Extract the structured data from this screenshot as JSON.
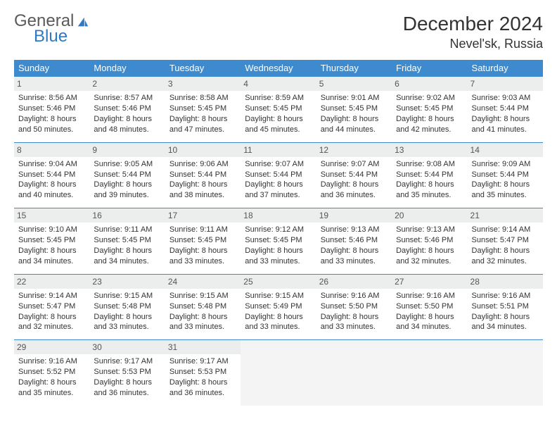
{
  "logo": {
    "general": "General",
    "blue": "Blue"
  },
  "title": "December 2024",
  "location": "Nevel'sk, Russia",
  "colors": {
    "header_bg": "#3d8bce",
    "header_fg": "#ffffff",
    "daynum_bg": "#eceded",
    "border": "#3d8bce",
    "logo_gray": "#5a5a5a",
    "logo_blue": "#2f79c2"
  },
  "weekdays": [
    "Sunday",
    "Monday",
    "Tuesday",
    "Wednesday",
    "Thursday",
    "Friday",
    "Saturday"
  ],
  "weeks": [
    [
      {
        "n": "1",
        "sr": "Sunrise: 8:56 AM",
        "ss": "Sunset: 5:46 PM",
        "d1": "Daylight: 8 hours",
        "d2": "and 50 minutes."
      },
      {
        "n": "2",
        "sr": "Sunrise: 8:57 AM",
        "ss": "Sunset: 5:46 PM",
        "d1": "Daylight: 8 hours",
        "d2": "and 48 minutes."
      },
      {
        "n": "3",
        "sr": "Sunrise: 8:58 AM",
        "ss": "Sunset: 5:45 PM",
        "d1": "Daylight: 8 hours",
        "d2": "and 47 minutes."
      },
      {
        "n": "4",
        "sr": "Sunrise: 8:59 AM",
        "ss": "Sunset: 5:45 PM",
        "d1": "Daylight: 8 hours",
        "d2": "and 45 minutes."
      },
      {
        "n": "5",
        "sr": "Sunrise: 9:01 AM",
        "ss": "Sunset: 5:45 PM",
        "d1": "Daylight: 8 hours",
        "d2": "and 44 minutes."
      },
      {
        "n": "6",
        "sr": "Sunrise: 9:02 AM",
        "ss": "Sunset: 5:45 PM",
        "d1": "Daylight: 8 hours",
        "d2": "and 42 minutes."
      },
      {
        "n": "7",
        "sr": "Sunrise: 9:03 AM",
        "ss": "Sunset: 5:44 PM",
        "d1": "Daylight: 8 hours",
        "d2": "and 41 minutes."
      }
    ],
    [
      {
        "n": "8",
        "sr": "Sunrise: 9:04 AM",
        "ss": "Sunset: 5:44 PM",
        "d1": "Daylight: 8 hours",
        "d2": "and 40 minutes."
      },
      {
        "n": "9",
        "sr": "Sunrise: 9:05 AM",
        "ss": "Sunset: 5:44 PM",
        "d1": "Daylight: 8 hours",
        "d2": "and 39 minutes."
      },
      {
        "n": "10",
        "sr": "Sunrise: 9:06 AM",
        "ss": "Sunset: 5:44 PM",
        "d1": "Daylight: 8 hours",
        "d2": "and 38 minutes."
      },
      {
        "n": "11",
        "sr": "Sunrise: 9:07 AM",
        "ss": "Sunset: 5:44 PM",
        "d1": "Daylight: 8 hours",
        "d2": "and 37 minutes."
      },
      {
        "n": "12",
        "sr": "Sunrise: 9:07 AM",
        "ss": "Sunset: 5:44 PM",
        "d1": "Daylight: 8 hours",
        "d2": "and 36 minutes."
      },
      {
        "n": "13",
        "sr": "Sunrise: 9:08 AM",
        "ss": "Sunset: 5:44 PM",
        "d1": "Daylight: 8 hours",
        "d2": "and 35 minutes."
      },
      {
        "n": "14",
        "sr": "Sunrise: 9:09 AM",
        "ss": "Sunset: 5:44 PM",
        "d1": "Daylight: 8 hours",
        "d2": "and 35 minutes."
      }
    ],
    [
      {
        "n": "15",
        "sr": "Sunrise: 9:10 AM",
        "ss": "Sunset: 5:45 PM",
        "d1": "Daylight: 8 hours",
        "d2": "and 34 minutes."
      },
      {
        "n": "16",
        "sr": "Sunrise: 9:11 AM",
        "ss": "Sunset: 5:45 PM",
        "d1": "Daylight: 8 hours",
        "d2": "and 34 minutes."
      },
      {
        "n": "17",
        "sr": "Sunrise: 9:11 AM",
        "ss": "Sunset: 5:45 PM",
        "d1": "Daylight: 8 hours",
        "d2": "and 33 minutes."
      },
      {
        "n": "18",
        "sr": "Sunrise: 9:12 AM",
        "ss": "Sunset: 5:45 PM",
        "d1": "Daylight: 8 hours",
        "d2": "and 33 minutes."
      },
      {
        "n": "19",
        "sr": "Sunrise: 9:13 AM",
        "ss": "Sunset: 5:46 PM",
        "d1": "Daylight: 8 hours",
        "d2": "and 33 minutes."
      },
      {
        "n": "20",
        "sr": "Sunrise: 9:13 AM",
        "ss": "Sunset: 5:46 PM",
        "d1": "Daylight: 8 hours",
        "d2": "and 32 minutes."
      },
      {
        "n": "21",
        "sr": "Sunrise: 9:14 AM",
        "ss": "Sunset: 5:47 PM",
        "d1": "Daylight: 8 hours",
        "d2": "and 32 minutes."
      }
    ],
    [
      {
        "n": "22",
        "sr": "Sunrise: 9:14 AM",
        "ss": "Sunset: 5:47 PM",
        "d1": "Daylight: 8 hours",
        "d2": "and 32 minutes."
      },
      {
        "n": "23",
        "sr": "Sunrise: 9:15 AM",
        "ss": "Sunset: 5:48 PM",
        "d1": "Daylight: 8 hours",
        "d2": "and 33 minutes."
      },
      {
        "n": "24",
        "sr": "Sunrise: 9:15 AM",
        "ss": "Sunset: 5:48 PM",
        "d1": "Daylight: 8 hours",
        "d2": "and 33 minutes."
      },
      {
        "n": "25",
        "sr": "Sunrise: 9:15 AM",
        "ss": "Sunset: 5:49 PM",
        "d1": "Daylight: 8 hours",
        "d2": "and 33 minutes."
      },
      {
        "n": "26",
        "sr": "Sunrise: 9:16 AM",
        "ss": "Sunset: 5:50 PM",
        "d1": "Daylight: 8 hours",
        "d2": "and 33 minutes."
      },
      {
        "n": "27",
        "sr": "Sunrise: 9:16 AM",
        "ss": "Sunset: 5:50 PM",
        "d1": "Daylight: 8 hours",
        "d2": "and 34 minutes."
      },
      {
        "n": "28",
        "sr": "Sunrise: 9:16 AM",
        "ss": "Sunset: 5:51 PM",
        "d1": "Daylight: 8 hours",
        "d2": "and 34 minutes."
      }
    ],
    [
      {
        "n": "29",
        "sr": "Sunrise: 9:16 AM",
        "ss": "Sunset: 5:52 PM",
        "d1": "Daylight: 8 hours",
        "d2": "and 35 minutes."
      },
      {
        "n": "30",
        "sr": "Sunrise: 9:17 AM",
        "ss": "Sunset: 5:53 PM",
        "d1": "Daylight: 8 hours",
        "d2": "and 36 minutes."
      },
      {
        "n": "31",
        "sr": "Sunrise: 9:17 AM",
        "ss": "Sunset: 5:53 PM",
        "d1": "Daylight: 8 hours",
        "d2": "and 36 minutes."
      },
      null,
      null,
      null,
      null
    ]
  ]
}
